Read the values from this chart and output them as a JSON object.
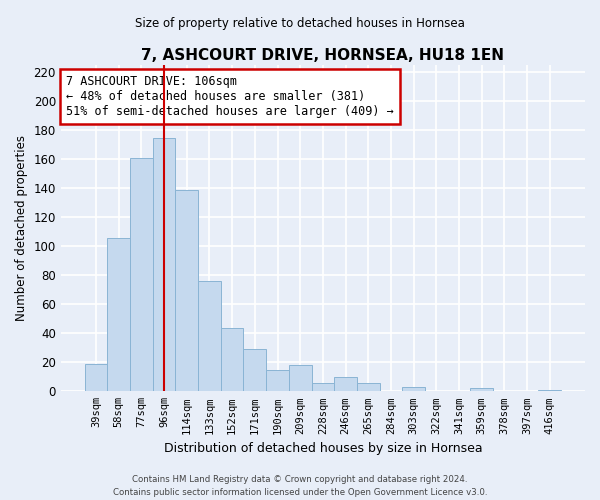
{
  "title": "7, ASHCOURT DRIVE, HORNSEA, HU18 1EN",
  "subtitle": "Size of property relative to detached houses in Hornsea",
  "xlabel": "Distribution of detached houses by size in Hornsea",
  "ylabel": "Number of detached properties",
  "bar_labels": [
    "39sqm",
    "58sqm",
    "77sqm",
    "96sqm",
    "114sqm",
    "133sqm",
    "152sqm",
    "171sqm",
    "190sqm",
    "209sqm",
    "228sqm",
    "246sqm",
    "265sqm",
    "284sqm",
    "303sqm",
    "322sqm",
    "341sqm",
    "359sqm",
    "378sqm",
    "397sqm",
    "416sqm"
  ],
  "bar_values": [
    19,
    106,
    161,
    175,
    139,
    76,
    44,
    29,
    15,
    18,
    6,
    10,
    6,
    0,
    3,
    0,
    0,
    2,
    0,
    0,
    1
  ],
  "bar_color": "#c5d9ee",
  "bar_edge_color": "#8ab4d4",
  "vline_x": 3,
  "vline_color": "#cc0000",
  "annotation_line1": "7 ASHCOURT DRIVE: 106sqm",
  "annotation_line2": "← 48% of detached houses are smaller (381)",
  "annotation_line3": "51% of semi-detached houses are larger (409) →",
  "annotation_box_color": "#ffffff",
  "annotation_box_edge": "#cc0000",
  "ylim": [
    0,
    225
  ],
  "yticks": [
    0,
    20,
    40,
    60,
    80,
    100,
    120,
    140,
    160,
    180,
    200,
    220
  ],
  "footer_line1": "Contains HM Land Registry data © Crown copyright and database right 2024.",
  "footer_line2": "Contains public sector information licensed under the Open Government Licence v3.0.",
  "bg_color": "#e8eef8",
  "plot_bg_color": "#e8eef8",
  "grid_color": "#ffffff"
}
